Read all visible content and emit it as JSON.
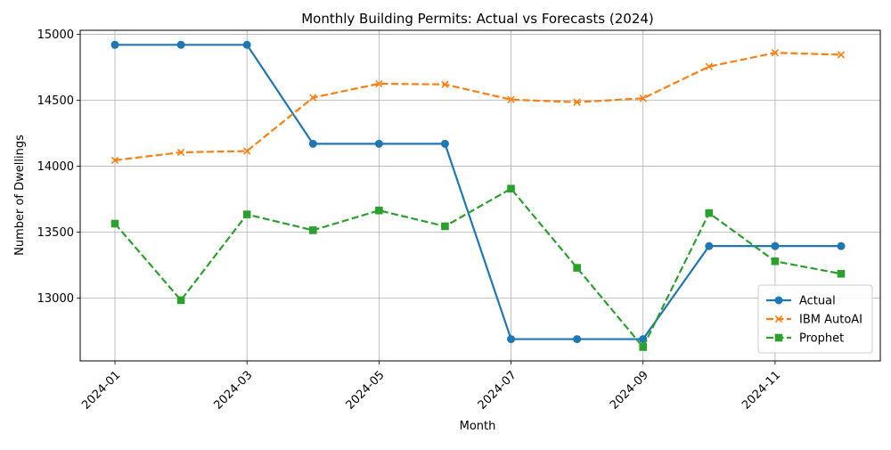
{
  "chart_data": {
    "type": "line",
    "title": "Monthly Building Permits: Actual vs Forecasts (2024)",
    "xlabel": "Month",
    "ylabel": "Number of Dwellings",
    "x": [
      "2024-01",
      "2024-02",
      "2024-03",
      "2024-04",
      "2024-05",
      "2024-06",
      "2024-07",
      "2024-08",
      "2024-09",
      "2024-10",
      "2024-11",
      "2024-12"
    ],
    "x_tick_labels": [
      "2024-01",
      "2024-03",
      "2024-05",
      "2024-07",
      "2024-09",
      "2024-11"
    ],
    "y_ticks": [
      13000,
      13500,
      14000,
      14500,
      15000
    ],
    "ylim": [
      12525,
      15030
    ],
    "grid": true,
    "legend_position": "lower-right",
    "series": [
      {
        "name": "Actual",
        "color": "#1f77b4",
        "line": "solid",
        "marker": "circle",
        "values": [
          14920,
          14920,
          14920,
          14170,
          14170,
          14170,
          12690,
          12690,
          12690,
          13395,
          13395,
          13395
        ]
      },
      {
        "name": "IBM AutoAI",
        "color": "#ff7f0e",
        "line": "dashed",
        "marker": "x",
        "values": [
          14045,
          14105,
          14115,
          14520,
          14625,
          14620,
          14505,
          14485,
          14515,
          14755,
          14860,
          14845
        ]
      },
      {
        "name": "Prophet",
        "color": "#2ca02c",
        "line": "dashed",
        "marker": "square",
        "values": [
          13565,
          12985,
          13635,
          13515,
          13665,
          13545,
          13830,
          13230,
          12630,
          13645,
          13280,
          13185
        ]
      }
    ]
  }
}
